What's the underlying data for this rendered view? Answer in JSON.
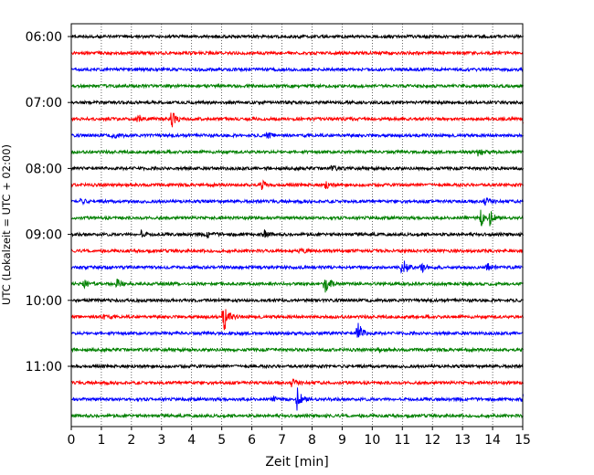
{
  "chart_data": {
    "type": "line",
    "title": "",
    "xlabel": "Zeit  [min]",
    "ylabel": "UTC (Lokalzeit = UTC + 02:00)",
    "xlim": [
      0,
      15
    ],
    "x_ticks": [
      "0",
      "1",
      "2",
      "3",
      "4",
      "5",
      "6",
      "7",
      "8",
      "9",
      "10",
      "11",
      "12",
      "13",
      "14",
      "15"
    ],
    "x_grid": "dotted vertical lines at each minute",
    "hour_labels": [
      "06:00",
      "07:00",
      "08:00",
      "09:00",
      "10:00",
      "11:00"
    ],
    "trace_interval_min": 15,
    "color_cycle": [
      "#000000",
      "#ff0000",
      "#0000ff",
      "#008000"
    ],
    "traces": [
      {
        "start": "06:00",
        "color": "#000000",
        "events": []
      },
      {
        "start": "06:15",
        "color": "#ff0000",
        "events": []
      },
      {
        "start": "06:30",
        "color": "#0000ff",
        "events": []
      },
      {
        "start": "06:45",
        "color": "#008000",
        "events": []
      },
      {
        "start": "07:00",
        "color": "#000000",
        "events": []
      },
      {
        "start": "07:15",
        "color": "#ff0000",
        "events": [
          {
            "x": 2.2,
            "amp": 6
          },
          {
            "x": 3.3,
            "amp": 11
          },
          {
            "x": 15.0,
            "amp": 5
          }
        ]
      },
      {
        "start": "07:30",
        "color": "#0000ff",
        "events": [
          {
            "x": 1.4,
            "amp": 4
          },
          {
            "x": 6.5,
            "amp": 4
          }
        ]
      },
      {
        "start": "07:45",
        "color": "#008000",
        "events": [
          {
            "x": 13.5,
            "amp": 4
          }
        ]
      },
      {
        "start": "08:00",
        "color": "#000000",
        "events": [
          {
            "x": 8.6,
            "amp": 4
          }
        ]
      },
      {
        "start": "08:15",
        "color": "#ff0000",
        "events": [
          {
            "x": 6.3,
            "amp": 6
          },
          {
            "x": 8.4,
            "amp": 5
          }
        ]
      },
      {
        "start": "08:30",
        "color": "#0000ff",
        "events": [
          {
            "x": 0.3,
            "amp": 3
          },
          {
            "x": 13.7,
            "amp": 5
          }
        ]
      },
      {
        "start": "08:45",
        "color": "#008000",
        "events": [
          {
            "x": 13.6,
            "amp": 10
          },
          {
            "x": 13.9,
            "amp": 9
          }
        ]
      },
      {
        "start": "09:00",
        "color": "#000000",
        "events": [
          {
            "x": 2.3,
            "amp": 4
          },
          {
            "x": 4.5,
            "amp": 4
          },
          {
            "x": 6.4,
            "amp": 4
          }
        ]
      },
      {
        "start": "09:15",
        "color": "#ff0000",
        "events": [
          {
            "x": 7.6,
            "amp": 3
          }
        ]
      },
      {
        "start": "09:30",
        "color": "#0000ff",
        "events": [
          {
            "x": 11.0,
            "amp": 14
          },
          {
            "x": 11.6,
            "amp": 6
          },
          {
            "x": 13.8,
            "amp": 6
          }
        ]
      },
      {
        "start": "09:45",
        "color": "#008000",
        "events": [
          {
            "x": 0.4,
            "amp": 5
          },
          {
            "x": 1.5,
            "amp": 6
          },
          {
            "x": 8.4,
            "amp": 12
          }
        ]
      },
      {
        "start": "10:00",
        "color": "#000000",
        "events": []
      },
      {
        "start": "10:15",
        "color": "#ff0000",
        "events": [
          {
            "x": 5.05,
            "amp": 18
          },
          {
            "x": 1.0,
            "amp": 3
          }
        ]
      },
      {
        "start": "10:30",
        "color": "#0000ff",
        "events": [
          {
            "x": 9.5,
            "amp": 16
          }
        ]
      },
      {
        "start": "10:45",
        "color": "#008000",
        "events": [
          {
            "x": 10.2,
            "amp": 3
          }
        ]
      },
      {
        "start": "11:00",
        "color": "#000000",
        "events": []
      },
      {
        "start": "11:15",
        "color": "#ff0000",
        "events": [
          {
            "x": 7.3,
            "amp": 4
          }
        ]
      },
      {
        "start": "11:30",
        "color": "#0000ff",
        "events": [
          {
            "x": 7.5,
            "amp": 14
          },
          {
            "x": 6.7,
            "amp": 4
          },
          {
            "x": 15.0,
            "amp": 4
          }
        ]
      },
      {
        "start": "11:45",
        "color": "#008000",
        "events": []
      }
    ]
  }
}
